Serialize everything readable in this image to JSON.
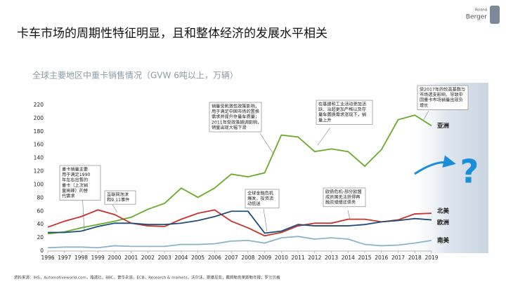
{
  "chart_data": {
    "type": "line",
    "title": "卡车市场的周期性特征明显，且和整体经济的发展水平相关",
    "subtitle": "全球主要地区中重卡销售情况（GVW 6吨以上，万辆）",
    "logo": [
      "Roland",
      "Berger"
    ],
    "categories": [
      "1996",
      "1997",
      "1998",
      "1999",
      "2000",
      "2001",
      "2002",
      "2003",
      "2004",
      "2005",
      "2006",
      "2007",
      "2008",
      "2009",
      "2010",
      "2011",
      "2012",
      "2013",
      "2014",
      "2015",
      "2016",
      "2017",
      "2018",
      "2019"
    ],
    "ylim": [
      0,
      220
    ],
    "yticks": [
      0,
      20,
      40,
      60,
      80,
      100,
      120,
      140,
      160,
      180,
      200,
      220
    ],
    "series": [
      {
        "name": "亚洲",
        "color": "#6aaa2a",
        "values": [
          26,
          29,
          35,
          40,
          45,
          51,
          63,
          72,
          95,
          81,
          95,
          116,
          112,
          118,
          175,
          172,
          150,
          154,
          150,
          128,
          153,
          198,
          205,
          189
        ]
      },
      {
        "name": "北美",
        "color": "#c8312c",
        "values": [
          36,
          45,
          52,
          62,
          55,
          42,
          38,
          37,
          48,
          57,
          62,
          45,
          35,
          23,
          28,
          38,
          42,
          42,
          48,
          48,
          44,
          47,
          56,
          57
        ]
      },
      {
        "name": "欧洲",
        "color": "#1f4e79",
        "values": [
          28,
          28,
          30,
          37,
          42,
          42,
          40,
          40,
          42,
          46,
          52,
          60,
          60,
          27,
          30,
          40,
          38,
          38,
          38,
          40,
          44,
          46,
          49,
          47
        ]
      },
      {
        "name": "南美",
        "color": "#8ab4c8",
        "values": [
          5,
          6,
          6,
          5,
          8,
          7,
          7,
          7,
          10,
          10,
          11,
          15,
          16,
          12,
          20,
          22,
          18,
          20,
          18,
          10,
          8,
          9,
          12,
          16
        ]
      }
    ],
    "annotations": [
      [
        "重卡销量主要",
        "用于满足1990",
        "年左右出售的",
        "重卡（上次销",
        "量高峰）的替",
        "代需求"
      ],
      [
        "互联网泡沫",
        "和9.11事件"
      ],
      [
        "销量受刺激性政策影响，",
        "用于满足中国市场的置换",
        "需求并提升存量车质量；",
        "2011年受政策期调影响，",
        "销量出现大幅下滑"
      ],
      [
        "全球金融危机",
        "爆发，投资活",
        "动低迷"
      ],
      [
        "在基建和工业活动更加活",
        "跃、治超更加严格以及存",
        "量车置换需求涨现下，销",
        "量上升"
      ],
      [
        "欧债危机-部分欧盟",
        "成员国无法获得再",
        "融资或偿还债务"
      ],
      [
        "受2017年的较高基数与",
        "市场透支影响，导致中",
        "国重卡市场销量出现负",
        "增长"
      ]
    ],
    "source": "资料来源：IHS，Automotiveworld.com，路透社，BBC，普华永道，ECB，Research & markets，沃尔沃，斯堪尼亚，戴姆勒克莱斯勒年报；罗兰贝格"
  }
}
